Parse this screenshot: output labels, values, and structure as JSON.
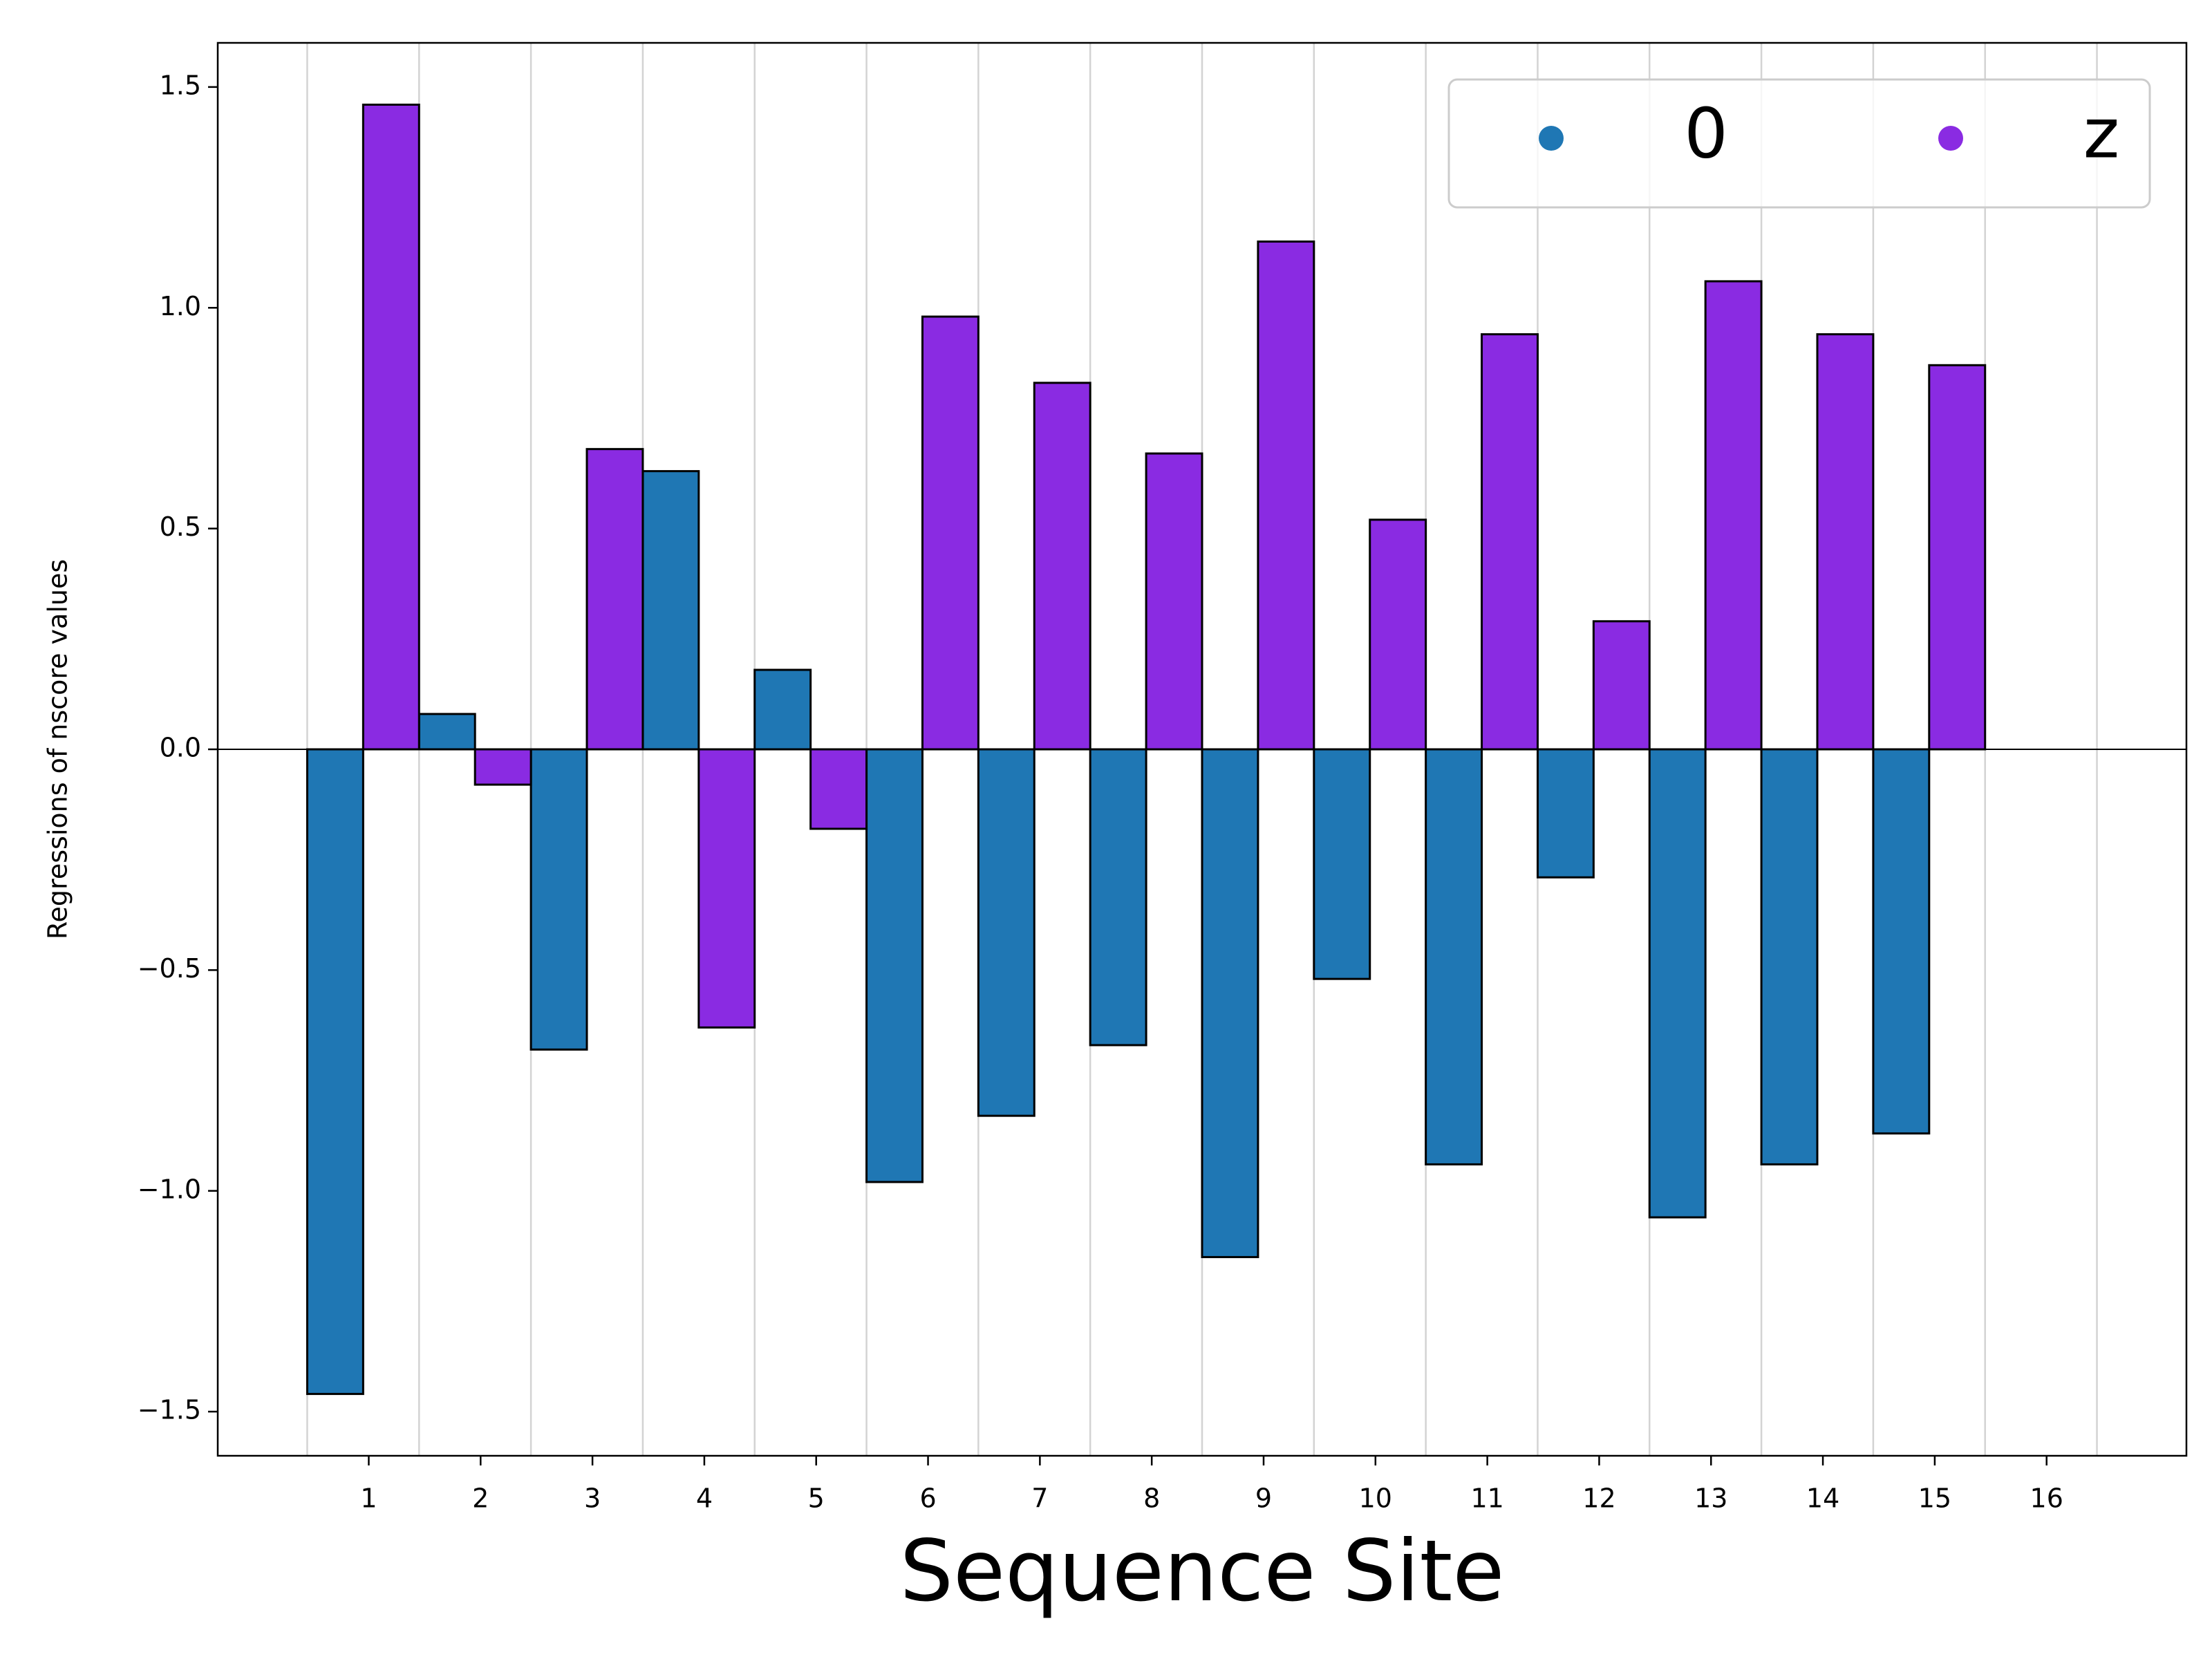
{
  "chart_data": {
    "type": "bar",
    "x_label": "Sequence Site",
    "y_label": "Regressions of nscore values",
    "categories": [
      "1",
      "2",
      "3",
      "4",
      "5",
      "6",
      "7",
      "8",
      "9",
      "10",
      "11",
      "12",
      "13",
      "14",
      "15",
      "16"
    ],
    "series": [
      {
        "name": "0",
        "color": "#1f77b4",
        "values": [
          -1.46,
          0.08,
          -0.68,
          0.63,
          0.18,
          -0.98,
          -0.83,
          -0.67,
          -1.15,
          -0.52,
          -0.94,
          -0.29,
          -1.06,
          -0.94,
          -0.87,
          null
        ]
      },
      {
        "name": "z",
        "color": "#8a2be2",
        "values": [
          1.46,
          -0.08,
          0.68,
          -0.63,
          -0.18,
          0.98,
          0.83,
          0.67,
          1.15,
          0.52,
          0.94,
          0.29,
          1.06,
          0.94,
          0.87,
          null
        ]
      }
    ],
    "ylim": [
      -1.6,
      1.6
    ],
    "yticks": [
      {
        "value": -1.5,
        "label": "−1.5"
      },
      {
        "value": -1.0,
        "label": "−1.0"
      },
      {
        "value": -0.5,
        "label": "−0.5"
      },
      {
        "value": 0.0,
        "label": "0.0"
      },
      0.5,
      {
        "value": 1.0,
        "label": "1.0"
      },
      1.5
    ],
    "grid": true,
    "legend": "upper right"
  }
}
